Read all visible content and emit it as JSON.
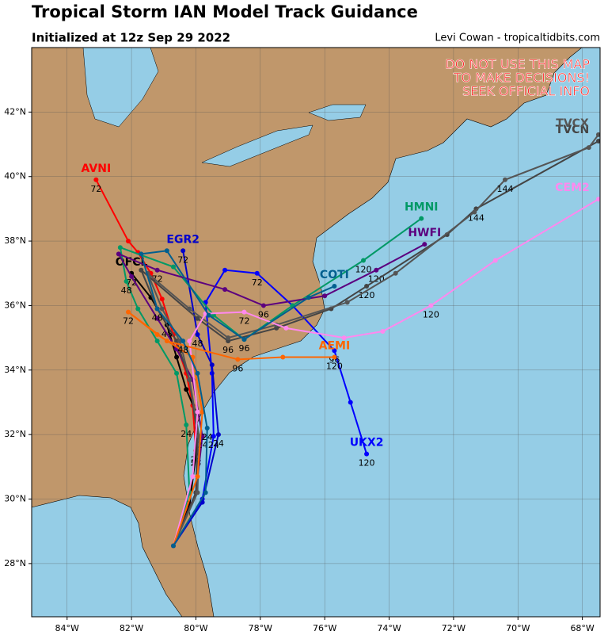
{
  "chart_data": {
    "type": "track_map",
    "title": "Tropical Storm IAN Model Track Guidance",
    "subtitle": "Initialized at 12z Sep 29 2022",
    "credit": "Levi Cowan - tropicaltidbits.com",
    "warning": [
      "DO NOT USE THIS MAP",
      "TO MAKE DECISIONS!",
      "SEEK OFFICIAL INFO"
    ],
    "xlim": [
      -85.1,
      -67.45
    ],
    "ylim": [
      26.35,
      44.0
    ],
    "xticks": [
      {
        "value": -84,
        "label": "84°W"
      },
      {
        "value": -82,
        "label": "82°W"
      },
      {
        "value": -80,
        "label": "80°W"
      },
      {
        "value": -78,
        "label": "78°W"
      },
      {
        "value": -76,
        "label": "76°W"
      },
      {
        "value": -74,
        "label": "74°W"
      },
      {
        "value": -72,
        "label": "72°W"
      },
      {
        "value": -70,
        "label": "70°W"
      },
      {
        "value": -68,
        "label": "68°W"
      }
    ],
    "yticks": [
      {
        "value": 28,
        "label": "28°N"
      },
      {
        "value": 30,
        "label": "30°N"
      },
      {
        "value": 32,
        "label": "32°N"
      },
      {
        "value": 34,
        "label": "34°N"
      },
      {
        "value": 36,
        "label": "36°N"
      },
      {
        "value": 38,
        "label": "38°N"
      },
      {
        "value": 40,
        "label": "40°N"
      },
      {
        "value": 42,
        "label": "42°N"
      }
    ],
    "grid": true,
    "tracks": [
      {
        "name": "AVNI",
        "color": "#ff0000",
        "lon": [
          -80.7,
          -80.2,
          -80.0,
          -80.1,
          -80.3,
          -80.7,
          -81.05,
          -81.4,
          -81.8,
          -82.1,
          -83.1
        ],
        "lat": [
          28.55,
          29.85,
          31.5,
          32.9,
          33.9,
          35.1,
          36.2,
          37.0,
          37.65,
          38.0,
          39.9
        ],
        "hour_labels": [
          {
            "hour": 24,
            "lon": -80.0,
            "lat": 31.5
          },
          {
            "hour": 72,
            "lon": -83.1,
            "lat": 39.9
          }
        ]
      },
      {
        "name": "OFCL",
        "color": "#000000",
        "lon": [
          -80.7,
          -80.2,
          -80.0,
          -80.0,
          -80.3,
          -80.6,
          -80.9,
          -81.4,
          -82.0
        ],
        "lat": [
          28.55,
          29.8,
          31.4,
          32.7,
          33.4,
          34.4,
          35.4,
          36.25,
          37.0
        ],
        "hour_labels": [
          {
            "hour": 24,
            "lon": -80.0,
            "lat": 31.4
          },
          {
            "hour": 48,
            "lon": -80.9,
            "lat": 35.4
          },
          {
            "hour": 72,
            "lon": -82.0,
            "lat": 37.0
          }
        ]
      },
      {
        "name": "UKX2",
        "color": "#0000ff",
        "lon": [
          -80.7,
          -79.8,
          -79.45,
          -79.5,
          -79.7,
          -79.1,
          -78.1,
          -77.0,
          -75.7,
          -75.2,
          -74.7
        ],
        "lat": [
          28.55,
          30.0,
          31.95,
          33.9,
          36.1,
          37.1,
          37.0,
          36.0,
          34.6,
          33.0,
          31.4
        ],
        "hour_labels": [
          {
            "hour": 24,
            "lon": -79.45,
            "lat": 31.95
          },
          {
            "hour": 72,
            "lon": -78.1,
            "lat": 37.0
          },
          {
            "hour": 96,
            "lon": -75.7,
            "lat": 34.6
          },
          {
            "hour": 120,
            "lon": -74.7,
            "lat": 31.4
          }
        ]
      },
      {
        "name": "EGR2",
        "color": "#0000cc",
        "lon": [
          -80.7,
          -79.8,
          -79.3,
          -79.5,
          -79.95,
          -80.4
        ],
        "lat": [
          28.55,
          29.9,
          32.0,
          34.16,
          35.1,
          37.7
        ],
        "hour_labels": [
          {
            "hour": 24,
            "lon": -79.3,
            "lat": 32.0
          },
          {
            "hour": 48,
            "lon": -79.95,
            "lat": 35.1
          },
          {
            "hour": 72,
            "lon": -80.4,
            "lat": 37.7
          }
        ]
      },
      {
        "name": "HMNI",
        "color": "#009966",
        "lon": [
          -80.7,
          -80.2,
          -80.3,
          -80.6,
          -81.2,
          -81.8,
          -82.16,
          -82.35,
          -80.7,
          -79.45,
          -78.5,
          -77.0,
          -74.8,
          -73.0
        ],
        "lat": [
          28.55,
          30.2,
          32.3,
          33.9,
          34.9,
          35.9,
          36.75,
          37.8,
          37.2,
          35.7,
          34.95,
          36.0,
          37.4,
          38.7
        ],
        "hour_labels": [
          {
            "hour": 24,
            "lon": -80.3,
            "lat": 32.3
          },
          {
            "hour": 48,
            "lon": -82.16,
            "lat": 36.75
          },
          {
            "hour": 96,
            "lon": -78.5,
            "lat": 34.95
          },
          {
            "hour": 120,
            "lon": -74.8,
            "lat": 37.4
          }
        ]
      },
      {
        "name": "HWFI",
        "color": "#5c007f",
        "lon": [
          -80.7,
          -80.0,
          -79.8,
          -80.1,
          -80.6,
          -81.2,
          -82.0,
          -82.4,
          -81.2,
          -79.1,
          -77.9,
          -76.0,
          -74.4,
          -72.9
        ],
        "lat": [
          28.55,
          30.2,
          31.95,
          33.7,
          34.65,
          35.6,
          36.9,
          37.6,
          37.1,
          36.5,
          36.0,
          36.3,
          37.1,
          37.9
        ],
        "hour_labels": [
          {
            "hour": 24,
            "lon": -79.8,
            "lat": 31.95
          },
          {
            "hour": 72,
            "lon": -81.2,
            "lat": 37.1
          },
          {
            "hour": 96,
            "lon": -77.9,
            "lat": 36.0
          },
          {
            "hour": 120,
            "lon": -74.4,
            "lat": 37.1
          }
        ]
      },
      {
        "name": "TVCN",
        "color": "#444444",
        "lon": [
          -80.7,
          -80.0,
          -79.95,
          -80.2,
          -80.6,
          -81.2,
          -81.7,
          -79.95,
          -79.0,
          -77.5,
          -75.8,
          -74.7,
          -72.2,
          -71.3,
          -67.5
        ],
        "lat": [
          28.55,
          30.2,
          31.95,
          33.7,
          34.9,
          35.9,
          37.1,
          35.6,
          34.9,
          35.3,
          35.9,
          36.6,
          38.2,
          39.0,
          41.1
        ],
        "hour_labels": [
          {
            "hour": 48,
            "lon": -81.2,
            "lat": 35.9
          },
          {
            "hour": 96,
            "lon": -79.0,
            "lat": 34.9
          },
          {
            "hour": 120,
            "lon": -74.7,
            "lat": 36.6
          },
          {
            "hour": 144,
            "lon": -71.3,
            "lat": 39.0
          }
        ]
      },
      {
        "name": "TVCX",
        "color": "#555555",
        "lon": [
          -80.7,
          -79.95,
          -79.9,
          -80.2,
          -80.5,
          -81.05,
          -81.5,
          -80.2,
          -79.0,
          -77.5,
          -75.3,
          -73.8,
          -71.35,
          -70.4,
          -67.8,
          -67.5
        ],
        "lat": [
          28.55,
          30.2,
          31.95,
          33.7,
          34.9,
          35.9,
          37.0,
          35.9,
          35.0,
          35.4,
          36.1,
          37.0,
          38.9,
          39.9,
          40.9,
          41.3
        ],
        "hour_labels": [
          {
            "hour": 144,
            "lon": -70.4,
            "lat": 39.9
          }
        ]
      },
      {
        "name": "CEM2",
        "color": "#ff88ee",
        "lon": [
          -80.7,
          -80.1,
          -79.95,
          -80.2,
          -79.7,
          -78.5,
          -77.2,
          -75.4,
          -74.2,
          -72.7,
          -70.7,
          -67.5
        ],
        "lat": [
          28.55,
          30.7,
          32.7,
          34.9,
          35.75,
          35.8,
          35.3,
          35.0,
          35.2,
          36.0,
          37.4,
          39.3
        ],
        "hour_labels": [
          {
            "hour": 72,
            "lon": -78.5,
            "lat": 35.8
          },
          {
            "hour": 120,
            "lon": -72.7,
            "lat": 36.0
          }
        ]
      },
      {
        "name": "AEMI",
        "color": "#ff6600",
        "lon": [
          -80.7,
          -79.95,
          -79.8,
          -80.1,
          -81.2,
          -82.1,
          -80.9,
          -78.7,
          -77.3,
          -75.7
        ],
        "lat": [
          28.55,
          30.7,
          32.7,
          34.4,
          35.1,
          35.8,
          34.9,
          34.33,
          34.4,
          34.4
        ],
        "hour_labels": [
          {
            "hour": 72,
            "lon": -82.1,
            "lat": 35.8
          },
          {
            "hour": 96,
            "lon": -78.7,
            "lat": 34.33
          },
          {
            "hour": 120,
            "lon": -75.7,
            "lat": 34.4
          }
        ]
      },
      {
        "name": "COTI",
        "color": "#005f8f",
        "lon": [
          -80.7,
          -79.7,
          -79.65,
          -79.95,
          -80.4,
          -81.2,
          -81.7,
          -80.9,
          -79.6,
          -78.5,
          -76.5,
          -75.7
        ],
        "lat": [
          28.55,
          30.2,
          32.2,
          33.9,
          34.9,
          35.9,
          37.6,
          37.7,
          35.7,
          34.95,
          36.25,
          36.6
        ],
        "hour_labels": [
          {
            "hour": 24,
            "lon": -79.65,
            "lat": 32.2
          },
          {
            "hour": 48,
            "lon": -80.4,
            "lat": 34.9
          }
        ]
      }
    ]
  }
}
